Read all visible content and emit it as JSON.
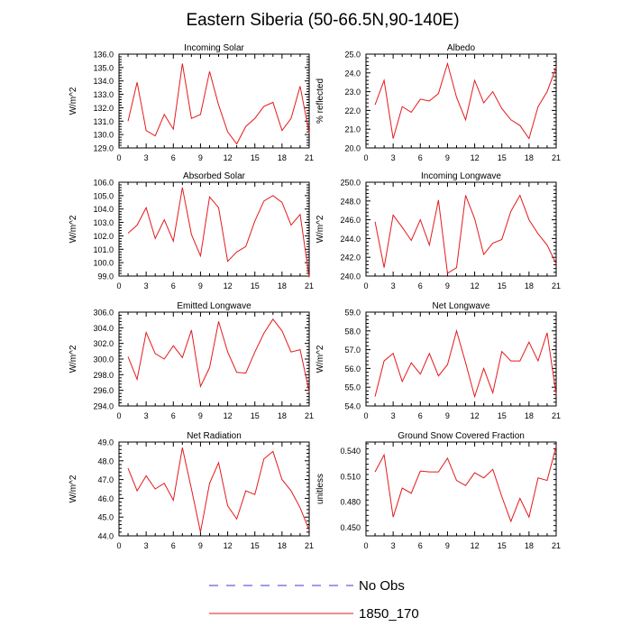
{
  "figure": {
    "title": "Eastern Siberia (50-66.5N,90-140E)",
    "legend": [
      {
        "label": "No Obs",
        "style": "dashed",
        "color": "#3a3ad8"
      },
      {
        "label": "1850_170",
        "style": "solid",
        "color": "#e41a1c"
      }
    ]
  },
  "chart_data": [
    {
      "type": "line",
      "title": "Incoming Solar",
      "xlabel": "",
      "ylabel": "W/m^2",
      "x": [
        1,
        2,
        3,
        4,
        5,
        6,
        7,
        8,
        9,
        10,
        11,
        12,
        13,
        14,
        15,
        16,
        17,
        18,
        19,
        20,
        21
      ],
      "xlim": [
        0,
        21
      ],
      "xticks": [
        0,
        3,
        6,
        9,
        12,
        15,
        18,
        21
      ],
      "ylim": [
        129.0,
        136.0
      ],
      "ymajor": [
        129.0,
        130.0,
        131.0,
        132.0,
        133.0,
        134.0,
        135.0,
        136.0
      ],
      "ydec": 1,
      "series": [
        {
          "name": "1850_170",
          "values": [
            131.0,
            133.9,
            130.3,
            129.9,
            131.5,
            130.4,
            135.3,
            131.2,
            131.5,
            134.7,
            132.2,
            130.2,
            129.3,
            130.6,
            131.2,
            132.1,
            132.4,
            130.3,
            131.2,
            133.6,
            130.1
          ]
        }
      ]
    },
    {
      "type": "line",
      "title": "Albedo",
      "xlabel": "",
      "ylabel": "% reflected",
      "x": [
        1,
        2,
        3,
        4,
        5,
        6,
        7,
        8,
        9,
        10,
        11,
        12,
        13,
        14,
        15,
        16,
        17,
        18,
        19,
        20,
        21
      ],
      "xlim": [
        0,
        21
      ],
      "xticks": [
        0,
        3,
        6,
        9,
        12,
        15,
        18,
        21
      ],
      "ylim": [
        20.0,
        25.0
      ],
      "ymajor": [
        20.0,
        21.0,
        22.0,
        23.0,
        24.0,
        25.0
      ],
      "ydec": 1,
      "series": [
        {
          "name": "1850_170",
          "values": [
            22.3,
            23.6,
            20.5,
            22.2,
            21.9,
            22.6,
            22.5,
            22.9,
            24.5,
            22.7,
            21.5,
            23.6,
            22.4,
            23.0,
            22.1,
            21.5,
            21.2,
            20.5,
            22.2,
            23.0,
            24.3
          ]
        }
      ]
    },
    {
      "type": "line",
      "title": "Absorbed Solar",
      "xlabel": "",
      "ylabel": "W/m^2",
      "x": [
        1,
        2,
        3,
        4,
        5,
        6,
        7,
        8,
        9,
        10,
        11,
        12,
        13,
        14,
        15,
        16,
        17,
        18,
        19,
        20,
        21
      ],
      "xlim": [
        0,
        21
      ],
      "xticks": [
        0,
        3,
        6,
        9,
        12,
        15,
        18,
        21
      ],
      "ylim": [
        99.0,
        106.0
      ],
      "ymajor": [
        99.0,
        100.0,
        101.0,
        102.0,
        103.0,
        104.0,
        105.0,
        106.0
      ],
      "ydec": 1,
      "series": [
        {
          "name": "1850_170",
          "values": [
            102.2,
            102.8,
            104.1,
            101.8,
            103.2,
            101.6,
            105.6,
            102.1,
            100.5,
            104.9,
            104.1,
            100.1,
            100.8,
            101.2,
            103.1,
            104.6,
            105.0,
            104.5,
            102.8,
            103.6,
            98.9
          ]
        }
      ]
    },
    {
      "type": "line",
      "title": "Incoming Longwave",
      "xlabel": "",
      "ylabel": "W/m^2",
      "x": [
        1,
        2,
        3,
        4,
        5,
        6,
        7,
        8,
        9,
        10,
        11,
        12,
        13,
        14,
        15,
        16,
        17,
        18,
        19,
        20,
        21
      ],
      "xlim": [
        0,
        21
      ],
      "xticks": [
        0,
        3,
        6,
        9,
        12,
        15,
        18,
        21
      ],
      "ylim": [
        240.0,
        250.0
      ],
      "ymajor": [
        240.0,
        242.0,
        244.0,
        246.0,
        248.0,
        250.0
      ],
      "ydec": 1,
      "series": [
        {
          "name": "1850_170",
          "values": [
            245.8,
            240.9,
            246.5,
            245.2,
            243.8,
            246.0,
            243.3,
            248.1,
            240.3,
            240.9,
            248.6,
            246.1,
            242.3,
            243.5,
            243.9,
            246.9,
            248.6,
            246.0,
            244.5,
            243.3,
            241.3
          ]
        }
      ]
    },
    {
      "type": "line",
      "title": "Emitted Longwave",
      "xlabel": "",
      "ylabel": "W/m^2",
      "x": [
        1,
        2,
        3,
        4,
        5,
        6,
        7,
        8,
        9,
        10,
        11,
        12,
        13,
        14,
        15,
        16,
        17,
        18,
        19,
        20,
        21
      ],
      "xlim": [
        0,
        21
      ],
      "xticks": [
        0,
        3,
        6,
        9,
        12,
        15,
        18,
        21
      ],
      "ylim": [
        294.0,
        306.0
      ],
      "ymajor": [
        294.0,
        296.0,
        298.0,
        300.0,
        302.0,
        304.0,
        306.0
      ],
      "ydec": 1,
      "series": [
        {
          "name": "1850_170",
          "values": [
            300.3,
            297.4,
            303.4,
            300.7,
            300.0,
            301.7,
            300.2,
            303.7,
            296.5,
            298.9,
            304.8,
            300.9,
            298.3,
            298.2,
            300.9,
            303.3,
            305.1,
            303.6,
            300.9,
            301.2,
            295.8
          ]
        }
      ]
    },
    {
      "type": "line",
      "title": "Net Longwave",
      "xlabel": "",
      "ylabel": "W/m^2",
      "x": [
        1,
        2,
        3,
        4,
        5,
        6,
        7,
        8,
        9,
        10,
        11,
        12,
        13,
        14,
        15,
        16,
        17,
        18,
        19,
        20,
        21
      ],
      "xlim": [
        0,
        21
      ],
      "xticks": [
        0,
        3,
        6,
        9,
        12,
        15,
        18,
        21
      ],
      "ylim": [
        54.0,
        59.0
      ],
      "ymajor": [
        54.0,
        55.0,
        56.0,
        57.0,
        58.0,
        59.0
      ],
      "ydec": 1,
      "series": [
        {
          "name": "1850_170",
          "values": [
            54.5,
            56.4,
            56.8,
            55.3,
            56.3,
            55.7,
            56.8,
            55.6,
            56.2,
            58.0,
            56.3,
            54.5,
            56.0,
            54.7,
            56.9,
            56.4,
            56.4,
            57.4,
            56.4,
            57.9,
            54.6
          ]
        }
      ]
    },
    {
      "type": "line",
      "title": "Net Radiation",
      "xlabel": "",
      "ylabel": "W/m^2",
      "x": [
        1,
        2,
        3,
        4,
        5,
        6,
        7,
        8,
        9,
        10,
        11,
        12,
        13,
        14,
        15,
        16,
        17,
        18,
        19,
        20,
        21
      ],
      "xlim": [
        0,
        21
      ],
      "xticks": [
        0,
        3,
        6,
        9,
        12,
        15,
        18,
        21
      ],
      "ylim": [
        44.0,
        49.0
      ],
      "ymajor": [
        44.0,
        45.0,
        46.0,
        47.0,
        48.0,
        49.0
      ],
      "ydec": 1,
      "series": [
        {
          "name": "1850_170",
          "values": [
            47.6,
            46.4,
            47.2,
            46.5,
            46.8,
            45.9,
            48.7,
            46.5,
            44.2,
            46.8,
            47.9,
            45.6,
            44.9,
            46.4,
            46.2,
            48.1,
            48.5,
            47.0,
            46.4,
            45.5,
            44.3
          ]
        }
      ]
    },
    {
      "type": "line",
      "title": "Ground Snow Covered Fraction",
      "xlabel": "",
      "ylabel": "unitless",
      "x": [
        1,
        2,
        3,
        4,
        5,
        6,
        7,
        8,
        9,
        10,
        11,
        12,
        13,
        14,
        15,
        16,
        17,
        18,
        19,
        20,
        21
      ],
      "xlim": [
        0,
        21
      ],
      "xticks": [
        0,
        3,
        6,
        9,
        12,
        15,
        18,
        21
      ],
      "ylim": [
        0.44,
        0.55
      ],
      "ymajor": [
        0.45,
        0.48,
        0.51,
        0.54
      ],
      "ydec": 3,
      "series": [
        {
          "name": "1850_170",
          "values": [
            0.515,
            0.535,
            0.462,
            0.496,
            0.49,
            0.516,
            0.515,
            0.515,
            0.531,
            0.505,
            0.499,
            0.514,
            0.508,
            0.518,
            0.486,
            0.457,
            0.484,
            0.462,
            0.508,
            0.505,
            0.545
          ]
        }
      ]
    }
  ]
}
